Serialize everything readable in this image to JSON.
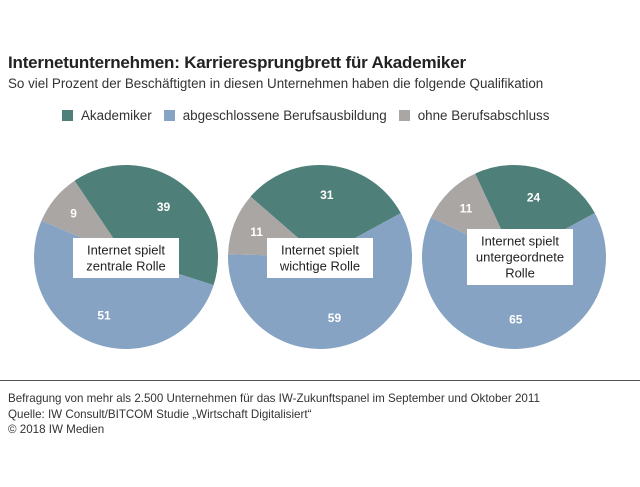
{
  "title": "Internetunternehmen: Karrieresprungbrett für Akademiker",
  "subtitle": "So viel Prozent der Beschäftigten in diesen Unternehmen haben die folgende Qualifikation",
  "legend": [
    {
      "label": "Akademiker",
      "color": "#4f7f79"
    },
    {
      "label": "abgeschlossene Berufsausbildung",
      "color": "#86a3c4"
    },
    {
      "label": "ohne Berufsabschluss",
      "color": "#a9a6a4"
    }
  ],
  "chart_data": {
    "type": "pie",
    "series_names": [
      "Akademiker",
      "abgeschlossene Berufsausbildung",
      "ohne Berufsabschluss"
    ],
    "colors": [
      "#4f7f79",
      "#86a3c4",
      "#a9a6a4"
    ],
    "pies": [
      {
        "label_lines": [
          "Internet spielt",
          "zentrale Rolle"
        ],
        "values": [
          39,
          51,
          9
        ]
      },
      {
        "label_lines": [
          "Internet spielt",
          "wichtige Rolle"
        ],
        "values": [
          31,
          59,
          11
        ]
      },
      {
        "label_lines": [
          "Internet spielt",
          "untergeordnete",
          "Rolle"
        ],
        "values": [
          24,
          65,
          11
        ]
      }
    ]
  },
  "footer": {
    "line1": "Befragung von mehr als 2.500 Unternehmen für das IW-Zukunftspanel im September und Oktober 2011",
    "line2": "Quelle: IW Consult/BITCOM Studie „Wirtschaft Digitalisiert“",
    "line3": "© 2018 IW Medien"
  }
}
